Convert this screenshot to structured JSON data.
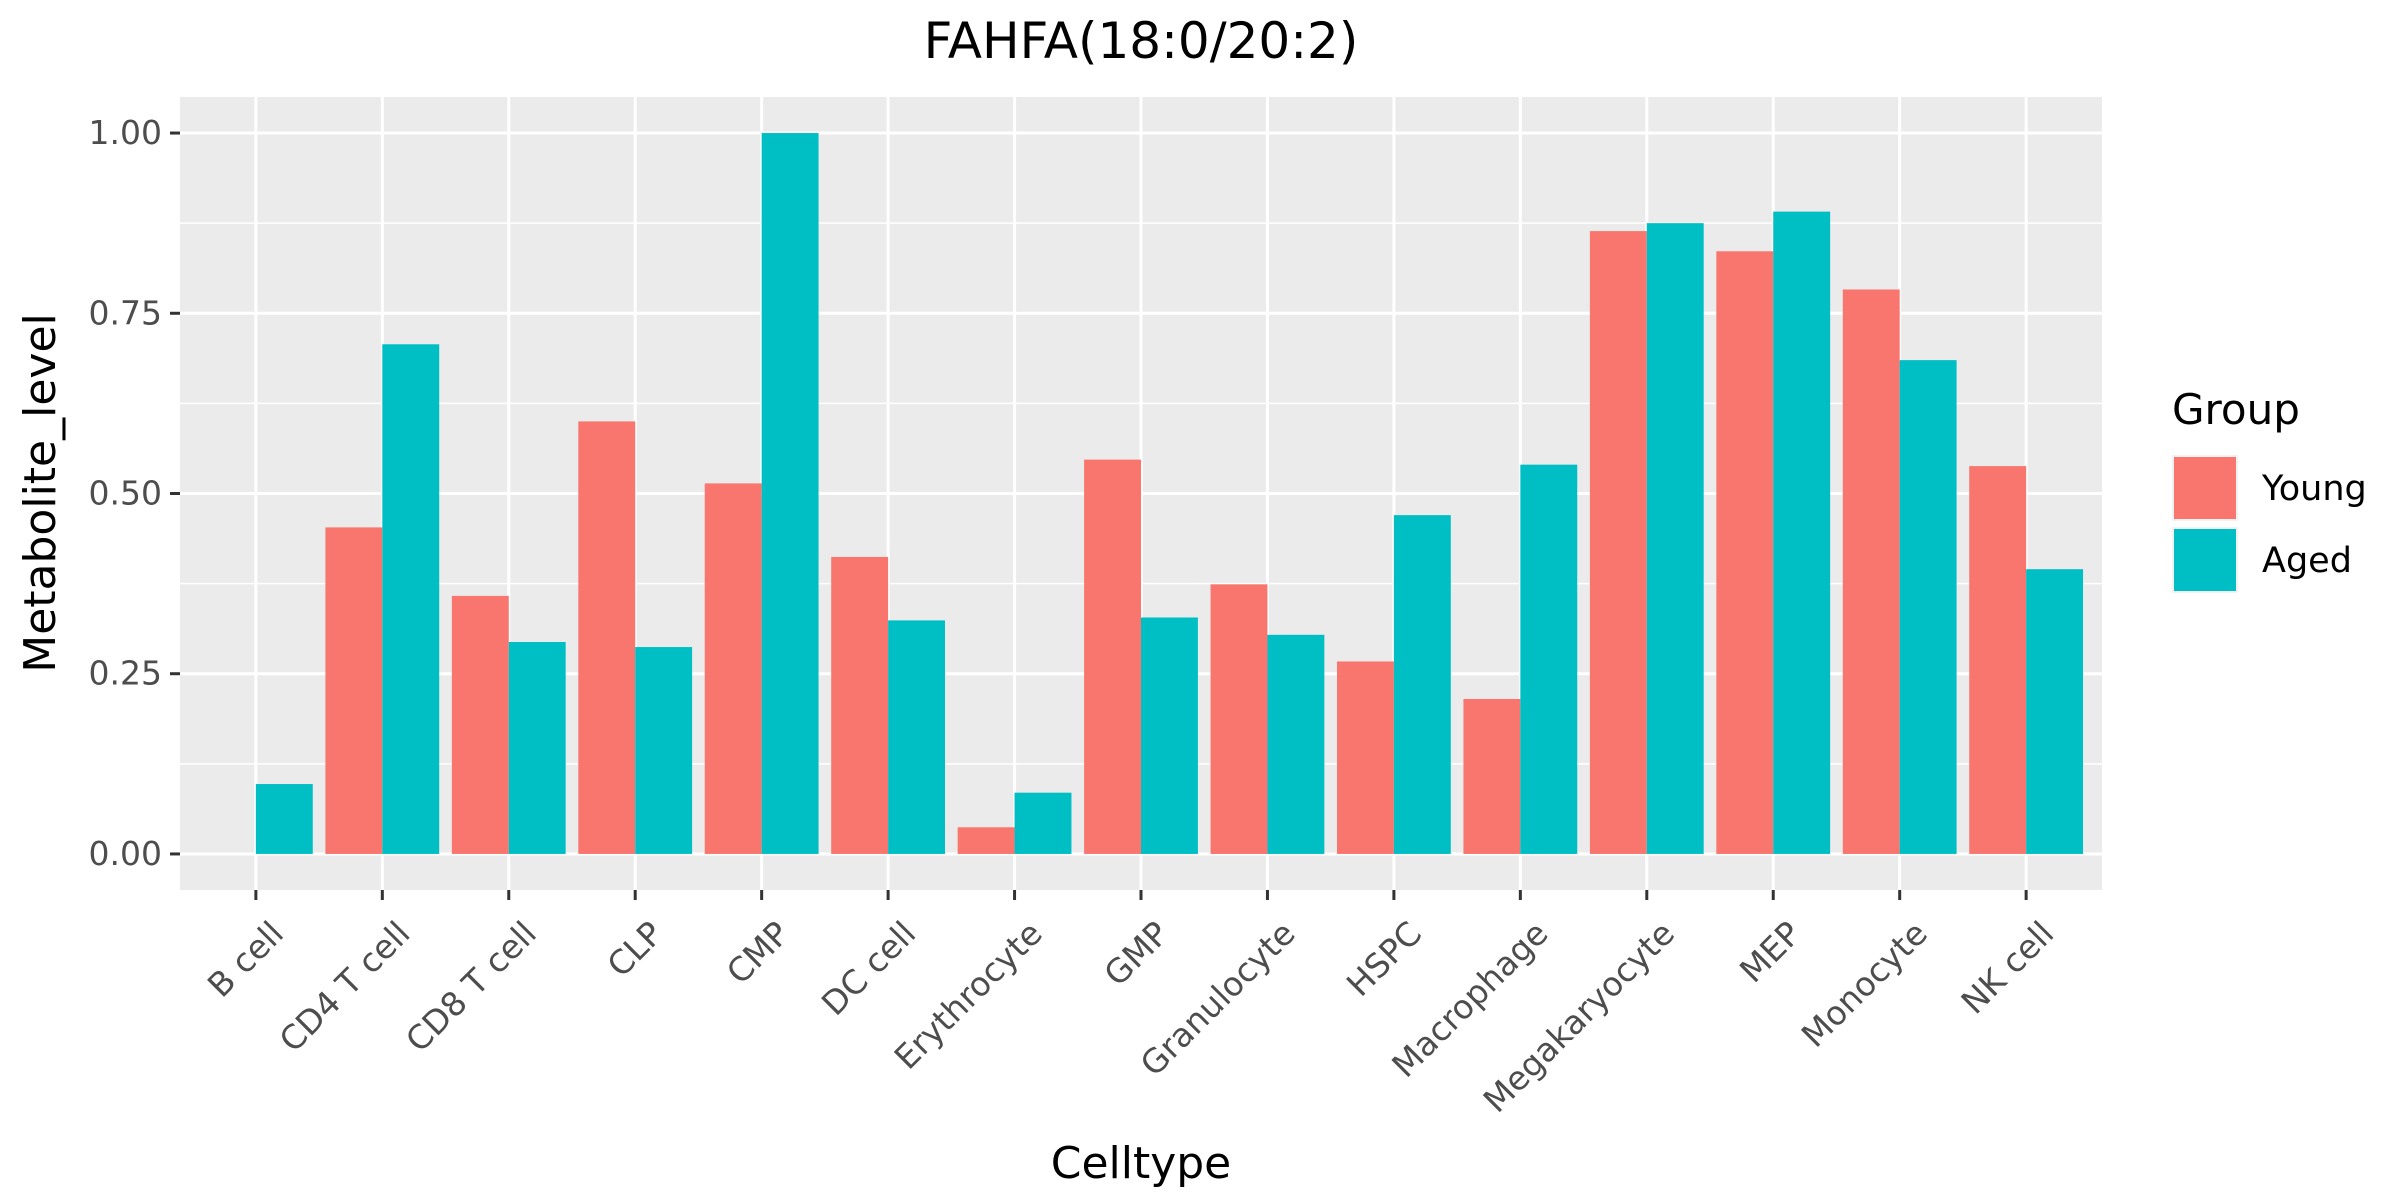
{
  "chart_data": {
    "type": "bar",
    "title": "FAHFA(18:0/20:2)",
    "xlabel": "Celltype",
    "ylabel": "Metabolite_level",
    "ylim": [
      -0.05,
      1.05
    ],
    "yticks": [
      0,
      0.25,
      0.5,
      0.75,
      1
    ],
    "ytick_labels": [
      "0.00",
      "0.25",
      "0.50",
      "0.75",
      "1.00"
    ],
    "categories": [
      "B cell",
      "CD4 T cell",
      "CD8 T cell",
      "CLP",
      "CMP",
      "DC cell",
      "Erythrocyte",
      "GMP",
      "Granulocyte",
      "HSPC",
      "Macrophage",
      "Megakaryocyte",
      "MEP",
      "Monocyte",
      "NK cell"
    ],
    "series": [
      {
        "name": "Young",
        "color": "#F8766D",
        "values": [
          null,
          0.453,
          0.358,
          0.6,
          0.514,
          0.412,
          0.037,
          0.547,
          0.374,
          0.267,
          0.215,
          0.864,
          0.836,
          0.783,
          0.538
        ]
      },
      {
        "name": "Aged",
        "color": "#00BFC4",
        "values": [
          0.097,
          0.707,
          0.294,
          0.287,
          1.0,
          0.324,
          0.085,
          0.328,
          0.304,
          0.47,
          0.54,
          0.875,
          0.891,
          0.685,
          0.395
        ]
      }
    ],
    "legend": {
      "title": "Group",
      "position": "right"
    },
    "grid": true,
    "panel_background": "#EBEBEB"
  }
}
